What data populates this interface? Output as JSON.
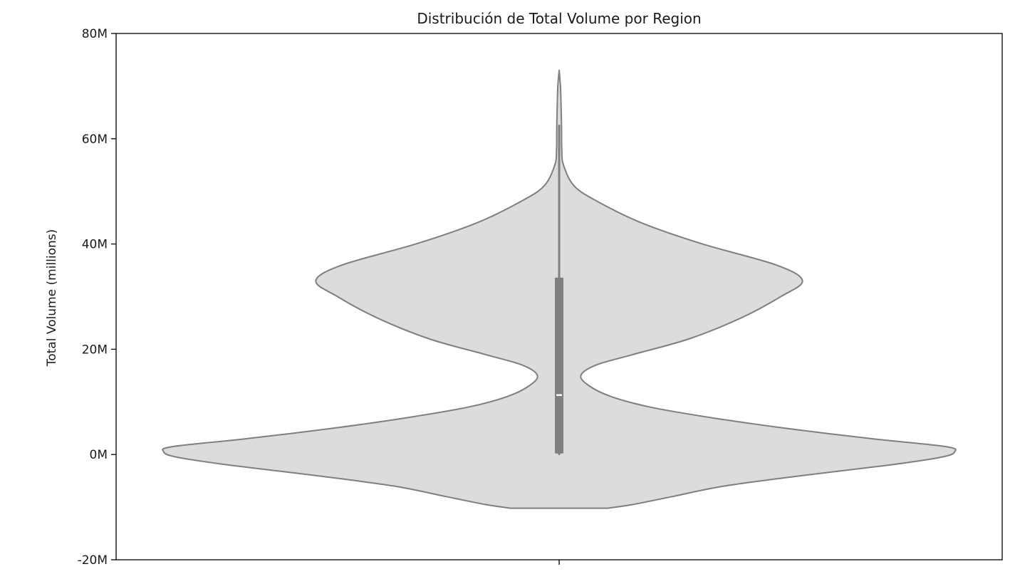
{
  "chart_data": {
    "type": "violin",
    "title": "Distribución de Total Volume por Region",
    "xlabel": "",
    "ylabel": "Total Volume (millions)",
    "ylim": [
      -20,
      80
    ],
    "y_unit": "M",
    "yticks": [
      -20,
      0,
      20,
      40,
      60,
      80
    ],
    "ytick_labels": [
      "-20M",
      "0M",
      "20M",
      "40M",
      "60M",
      "80M"
    ],
    "categories": [
      ""
    ],
    "grid": false,
    "colors": {
      "fill": "#dcdcdc",
      "edge": "#7f7f7f",
      "box": "#7f7f7f",
      "median": "#ffffff"
    },
    "series": [
      {
        "summary": {
          "min": 0.1,
          "q1": 0.2,
          "median": 11.3,
          "q3": 33.6,
          "max": 62.5
        },
        "density_profile": [
          [
            -10.2,
            0.112
          ],
          [
            -9.5,
            0.17
          ],
          [
            -8,
            0.26
          ],
          [
            -6,
            0.38
          ],
          [
            -4,
            0.56
          ],
          [
            -2,
            0.76
          ],
          [
            -0.5,
            0.88
          ],
          [
            0.5,
            0.91
          ],
          [
            1.5,
            0.89
          ],
          [
            3,
            0.72
          ],
          [
            5,
            0.52
          ],
          [
            7,
            0.35
          ],
          [
            9,
            0.21
          ],
          [
            11,
            0.12
          ],
          [
            13,
            0.07
          ],
          [
            15,
            0.05
          ],
          [
            17,
            0.085
          ],
          [
            19,
            0.17
          ],
          [
            22,
            0.3
          ],
          [
            26,
            0.42
          ],
          [
            30,
            0.51
          ],
          [
            33,
            0.56
          ],
          [
            36,
            0.5
          ],
          [
            40,
            0.33
          ],
          [
            44,
            0.19
          ],
          [
            48,
            0.09
          ],
          [
            51,
            0.035
          ],
          [
            55,
            0.01
          ],
          [
            58,
            0.006
          ],
          [
            62,
            0.0055
          ],
          [
            66,
            0.0045
          ],
          [
            70,
            0.003
          ],
          [
            73,
            0.0
          ]
        ]
      }
    ]
  }
}
